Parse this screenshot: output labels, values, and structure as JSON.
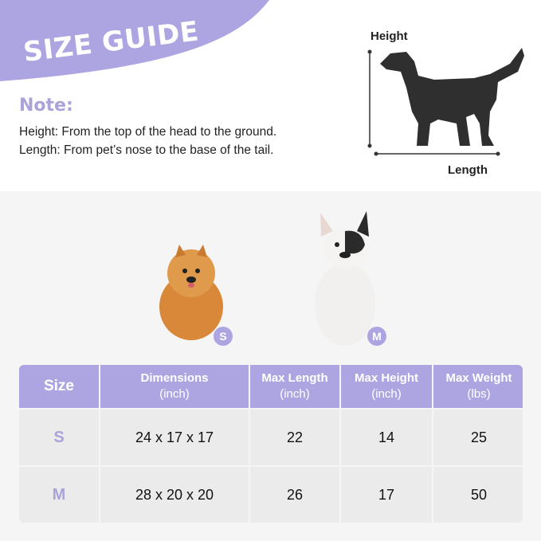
{
  "header": {
    "title": "SIZE GUIDE",
    "note_label": "Note:",
    "height_note": "Height: From the top of the head to the ground.",
    "length_note": "Length: From pet’s nose to the base of the tail."
  },
  "diagram": {
    "height_label": "Height",
    "length_label": "Length",
    "icon": "dog-silhouette-icon"
  },
  "pets": [
    {
      "badge": "S",
      "image": "pomeranian-photo"
    },
    {
      "badge": "M",
      "image": "french-bulldog-photo"
    }
  ],
  "table": {
    "headers": [
      [
        "Size"
      ],
      [
        "Dimensions",
        "(inch)"
      ],
      [
        "Max Length",
        "(inch)"
      ],
      [
        "Max Height",
        "(inch)"
      ],
      [
        "Max Weight",
        "(lbs)"
      ]
    ],
    "rows": [
      [
        "S",
        "24 x 17 x 17",
        "22",
        "14",
        "25"
      ],
      [
        "M",
        "28 x 20 x 20",
        "26",
        "17",
        "50"
      ]
    ]
  },
  "colors": {
    "accent": "#ada5e2",
    "cell": "#ebebeb",
    "background": "#f5f5f5"
  }
}
